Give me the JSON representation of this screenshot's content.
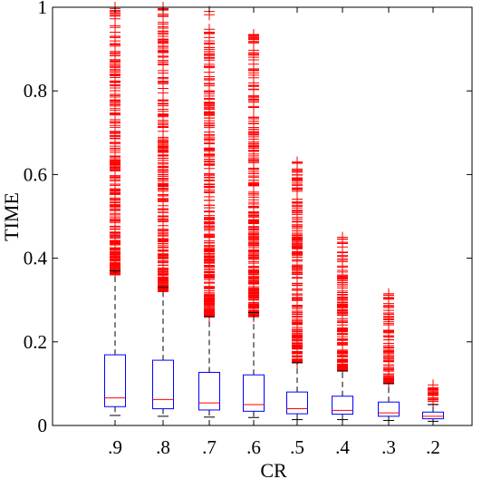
{
  "chart_data": {
    "type": "box",
    "title": "",
    "xlabel": "CR",
    "ylabel": "TIME",
    "ylim": [
      0,
      1
    ],
    "yticks": [
      0,
      0.2,
      0.4,
      0.6,
      0.8,
      1
    ],
    "ytick_labels": [
      "0",
      "0.2",
      "0.4",
      "0.6",
      "0.8",
      "1"
    ],
    "grid": false,
    "legend": "none",
    "colors": {
      "box": "#0000ff",
      "median": "#ff0000",
      "outlier": "#ff0000",
      "whisker": "#000000"
    },
    "categories": [
      ".9",
      ".8",
      ".7",
      ".6",
      ".5",
      ".4",
      ".3",
      ".2"
    ],
    "boxes": [
      {
        "label": ".9",
        "whisker_low": 0.024,
        "q1": 0.045,
        "median": 0.066,
        "q3": 0.169,
        "whisker_high": 0.37,
        "outlier_min": 0.36,
        "outlier_max": 1.0
      },
      {
        "label": ".8",
        "whisker_low": 0.022,
        "q1": 0.04,
        "median": 0.062,
        "q3": 0.156,
        "whisker_high": 0.33,
        "outlier_min": 0.32,
        "outlier_max": 1.0
      },
      {
        "label": ".7",
        "whisker_low": 0.02,
        "q1": 0.037,
        "median": 0.054,
        "q3": 0.127,
        "whisker_high": 0.26,
        "outlier_min": 0.26,
        "outlier_max": 0.99
      },
      {
        "label": ".6",
        "whisker_low": 0.019,
        "q1": 0.034,
        "median": 0.05,
        "q3": 0.121,
        "whisker_high": 0.27,
        "outlier_min": 0.26,
        "outlier_max": 0.935
      },
      {
        "label": ".5",
        "whisker_low": 0.014,
        "q1": 0.028,
        "median": 0.04,
        "q3": 0.08,
        "whisker_high": 0.15,
        "outlier_min": 0.15,
        "outlier_max": 0.63
      },
      {
        "label": ".4",
        "whisker_low": 0.014,
        "q1": 0.027,
        "median": 0.036,
        "q3": 0.07,
        "whisker_high": 0.13,
        "outlier_min": 0.13,
        "outlier_max": 0.45
      },
      {
        "label": ".3",
        "whisker_low": 0.012,
        "q1": 0.022,
        "median": 0.03,
        "q3": 0.056,
        "whisker_high": 0.1,
        "outlier_min": 0.1,
        "outlier_max": 0.315
      },
      {
        "label": ".2",
        "whisker_low": 0.01,
        "q1": 0.016,
        "median": 0.022,
        "q3": 0.032,
        "whisker_high": 0.05,
        "outlier_min": 0.05,
        "outlier_max": 0.097
      }
    ]
  }
}
